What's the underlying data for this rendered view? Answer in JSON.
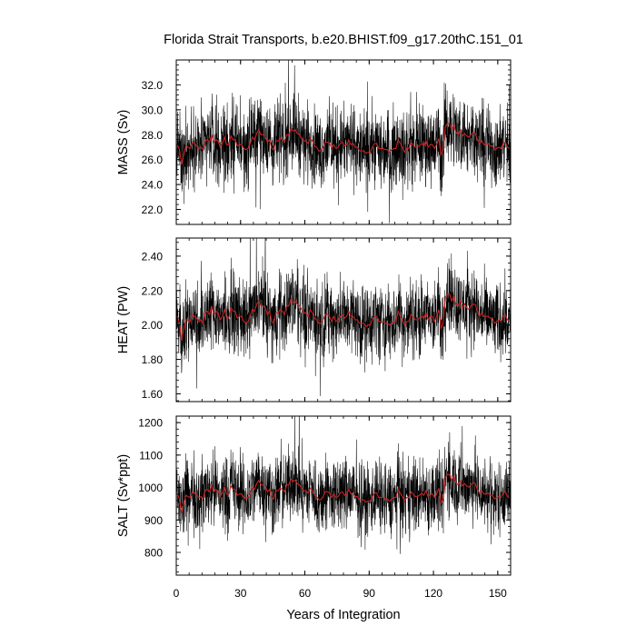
{
  "chart_data": {
    "type": "line",
    "title": "Florida Strait Transports, b.e20.BHIST.f09_g17.20thC.151_01",
    "xlabel": "Years of Integration",
    "xlim": [
      0,
      156
    ],
    "xticks": [
      "0",
      "30",
      "60",
      "90",
      "120",
      "150"
    ],
    "colors": {
      "monthly": "#000000",
      "annual": "#cc2222"
    },
    "panels": [
      {
        "ylabel": "MASS (Sv)",
        "ylim": [
          20.8,
          34.0
        ],
        "yticks": [
          "22.0",
          "24.0",
          "26.0",
          "28.0",
          "30.0",
          "32.0"
        ],
        "series": [
          {
            "values": [
              27.2,
              26.8,
              25.6,
              26.4,
              27.1,
              27.0,
              26.9,
              27.4,
              27.3,
              27.1,
              26.9,
              27.0,
              26.8,
              27.5,
              27.6,
              27.4,
              28.0,
              27.4,
              27.6,
              27.5,
              27.0,
              27.3,
              27.8,
              27.2,
              27.2,
              27.9,
              27.6,
              27.6,
              27.1,
              27.2,
              27.2,
              26.9,
              26.8,
              26.9,
              27.3,
              27.8,
              27.6,
              28.1,
              28.4,
              28.0,
              28.0,
              27.9,
              27.4,
              27.6,
              26.9,
              26.8,
              27.5,
              27.5,
              27.7,
              27.6,
              27.4,
              28.0,
              28.0,
              28.5,
              28.3,
              28.4,
              28.1,
              28.0,
              27.7,
              27.5,
              27.5,
              27.3,
              27.7,
              27.5,
              27.1,
              27.0,
              26.7,
              26.7,
              27.0,
              27.4,
              27.4,
              27.3,
              26.9,
              27.2,
              26.9,
              27.0,
              27.3,
              27.4,
              27.1,
              27.2,
              27.6,
              27.2,
              27.3,
              27.0,
              27.0,
              26.7,
              26.7,
              26.7,
              26.5,
              26.6,
              26.6,
              27.0,
              27.3,
              27.3,
              26.9,
              26.9,
              26.9,
              26.8,
              26.8,
              26.6,
              26.8,
              26.9,
              26.9,
              27.6,
              27.3,
              27.0,
              26.6,
              26.9,
              26.9,
              27.4,
              27.2,
              27.0,
              27.0,
              27.1,
              27.3,
              27.1,
              27.5,
              27.0,
              27.2,
              27.2,
              26.9,
              27.2,
              27.7,
              26.4,
              26.8,
              28.6,
              28.9,
              28.9,
              28.4,
              28.8,
              28.2,
              28.0,
              28.4,
              27.9,
              28.1,
              27.9,
              27.8,
              28.0,
              28.2,
              28.1,
              27.6,
              27.3,
              27.5,
              27.2,
              27.2,
              27.3,
              27.1,
              27.1,
              26.8,
              26.9,
              27.0,
              26.9,
              27.3,
              27.4,
              27.0,
              26.9
            ]
          }
        ]
      },
      {
        "ylabel": "HEAT (PW)",
        "ylim": [
          1.555,
          2.505
        ],
        "yticks": [
          "1.60",
          "1.80",
          "2.00",
          "2.20",
          "2.40"
        ],
        "series": [
          {
            "values": [
              2.05,
              2.01,
              1.91,
              1.98,
              2.03,
              2.03,
              2.02,
              2.06,
              2.05,
              2.04,
              2.02,
              2.03,
              2.01,
              2.07,
              2.08,
              2.06,
              2.11,
              2.06,
              2.08,
              2.07,
              2.03,
              2.05,
              2.09,
              2.04,
              2.04,
              2.1,
              2.08,
              2.08,
              2.04,
              2.05,
              2.05,
              2.02,
              2.01,
              2.02,
              2.05,
              2.09,
              2.08,
              2.12,
              2.14,
              2.11,
              2.11,
              2.1,
              2.06,
              2.08,
              2.02,
              2.01,
              2.07,
              2.07,
              2.09,
              2.08,
              2.06,
              2.11,
              2.11,
              2.15,
              2.13,
              2.14,
              2.12,
              2.11,
              2.09,
              2.07,
              2.07,
              2.05,
              2.09,
              2.07,
              2.04,
              2.03,
              2.01,
              2.01,
              2.03,
              2.06,
              2.06,
              2.05,
              2.02,
              2.05,
              2.02,
              2.03,
              2.05,
              2.06,
              2.04,
              2.05,
              2.08,
              2.05,
              2.05,
              2.03,
              2.03,
              2.01,
              2.01,
              2.01,
              1.99,
              2.0,
              2.0,
              2.03,
              2.05,
              2.05,
              2.02,
              2.02,
              2.02,
              2.01,
              2.01,
              2.0,
              2.01,
              2.02,
              2.02,
              2.08,
              2.05,
              2.03,
              2.0,
              2.02,
              2.02,
              2.06,
              2.05,
              2.03,
              2.03,
              2.04,
              2.05,
              2.04,
              2.07,
              2.03,
              2.05,
              2.05,
              2.02,
              2.05,
              2.09,
              1.98,
              2.01,
              2.16,
              2.18,
              2.18,
              2.14,
              2.17,
              2.12,
              2.11,
              2.14,
              2.1,
              2.12,
              2.1,
              2.09,
              2.11,
              2.12,
              2.12,
              2.08,
              2.05,
              2.07,
              2.05,
              2.05,
              2.05,
              2.04,
              2.04,
              2.01,
              2.02,
              2.03,
              2.02,
              2.05,
              2.06,
              2.03,
              2.02
            ]
          }
        ]
      },
      {
        "ylabel": "SALT (Sv*ppt)",
        "ylim": [
          730,
          1220
        ],
        "yticks": [
          "800",
          "900",
          "1000",
          "1100",
          "1200"
        ],
        "series": [
          {
            "values": [
              980,
              965,
              922,
              951,
              976,
              972,
              969,
              987,
              983,
              976,
              969,
              972,
              965,
              990,
              994,
              987,
              1008,
              987,
              994,
              990,
              972,
              983,
              1001,
              980,
              980,
              1005,
              994,
              994,
              976,
              980,
              980,
              969,
              965,
              969,
              983,
              1001,
              994,
              1012,
              1022,
              1008,
              1008,
              1005,
              987,
              994,
              969,
              965,
              990,
              990,
              998,
              994,
              987,
              1008,
              1008,
              1026,
              1019,
              1022,
              1012,
              1008,
              998,
              990,
              990,
              983,
              998,
              990,
              976,
              972,
              962,
              962,
              972,
              987,
              987,
              983,
              969,
              980,
              969,
              972,
              983,
              987,
              976,
              980,
              994,
              980,
              983,
              972,
              972,
              962,
              962,
              962,
              955,
              958,
              958,
              972,
              983,
              983,
              969,
              969,
              969,
              965,
              965,
              958,
              965,
              969,
              969,
              994,
              983,
              972,
              958,
              969,
              969,
              987,
              980,
              972,
              972,
              976,
              983,
              976,
              990,
              972,
              980,
              980,
              969,
              980,
              998,
              951,
              965,
              1030,
              1040,
              1040,
              1022,
              1037,
              1015,
              1008,
              1022,
              1005,
              1012,
              1005,
              1001,
              1008,
              1015,
              1012,
              994,
              983,
              990,
              980,
              980,
              983,
              976,
              976,
              965,
              969,
              972,
              969,
              983,
              987,
              972,
              969
            ]
          }
        ]
      }
    ]
  }
}
